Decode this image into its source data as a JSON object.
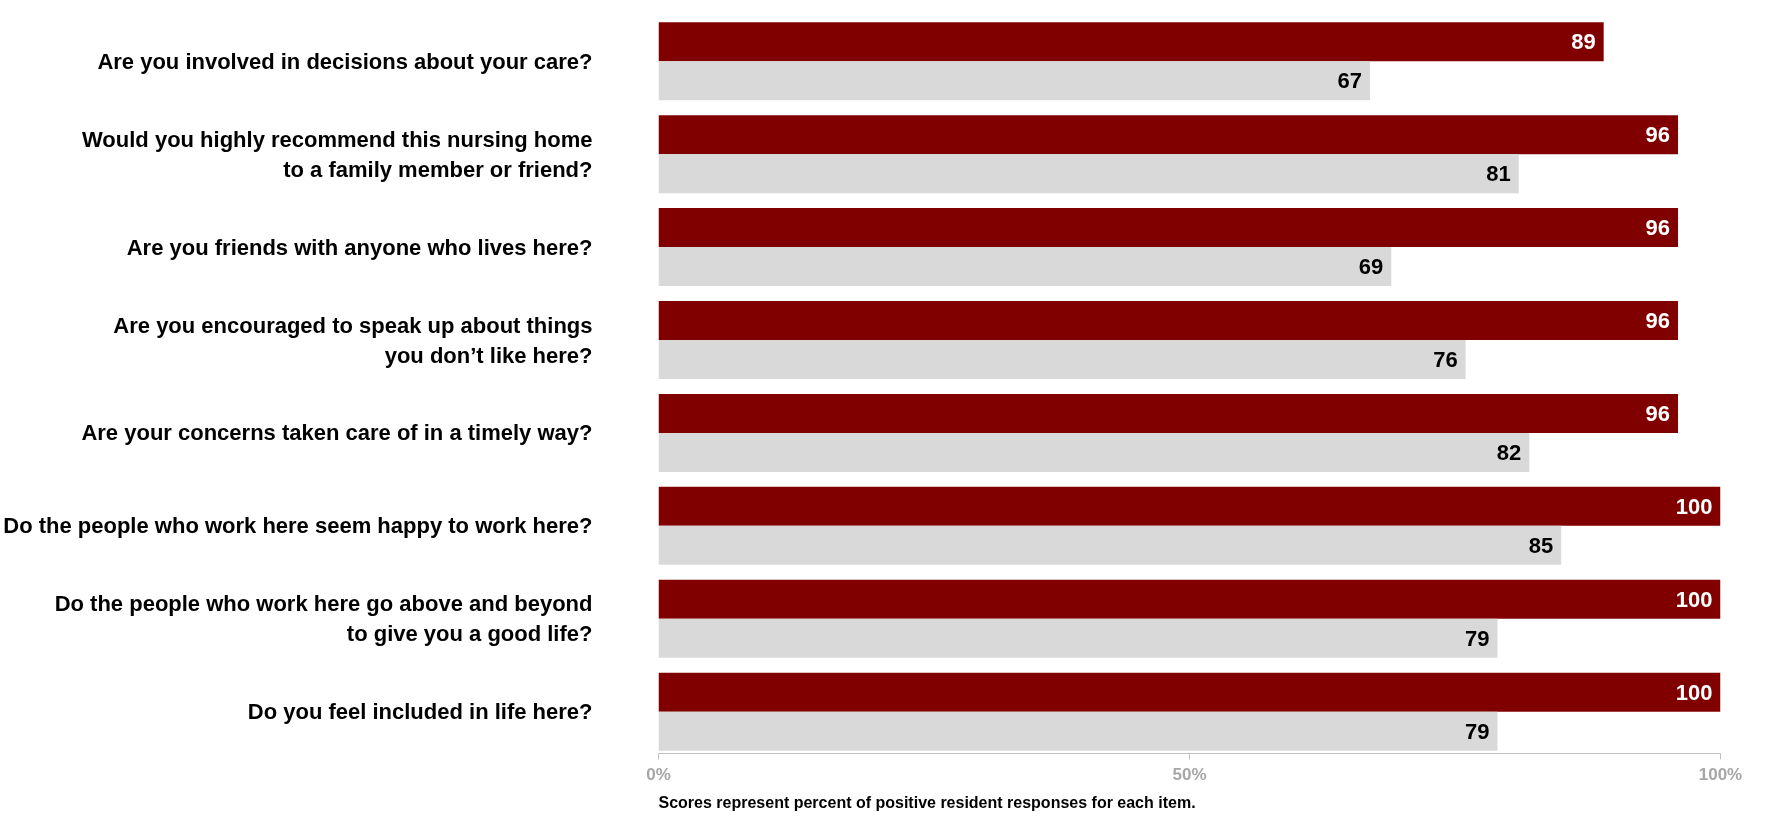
{
  "chart_data": {
    "type": "bar",
    "orientation": "horizontal",
    "categories": [
      "Are you involved in decisions about your care?",
      "Would you highly recommend this nursing home\nto a family member or friend?",
      "Are you friends with anyone who lives here?",
      "Are you encouraged to speak up about things\nyou don’t like here?",
      "Are your concerns taken care of in a timely way?",
      "Do the people who work here seem happy to work here?",
      "Do the people who work here go above and beyond\nto give you a good life?",
      "Do you feel included in life here?"
    ],
    "series": [
      {
        "color": "#800000",
        "values": [
          89,
          96,
          96,
          96,
          96,
          100,
          100,
          100
        ]
      },
      {
        "color": "#d9d9d9",
        "values": [
          67,
          81,
          69,
          76,
          82,
          85,
          79,
          79
        ]
      }
    ],
    "xlim": [
      0,
      100
    ],
    "xticks": [
      {
        "value": 0,
        "label": "0%"
      },
      {
        "value": 50,
        "label": "50%"
      },
      {
        "value": 100,
        "label": "100%"
      }
    ],
    "data_labels": true,
    "grid": false,
    "annotations": [
      "Scores represent percent of positive resident responses for each item."
    ]
  }
}
